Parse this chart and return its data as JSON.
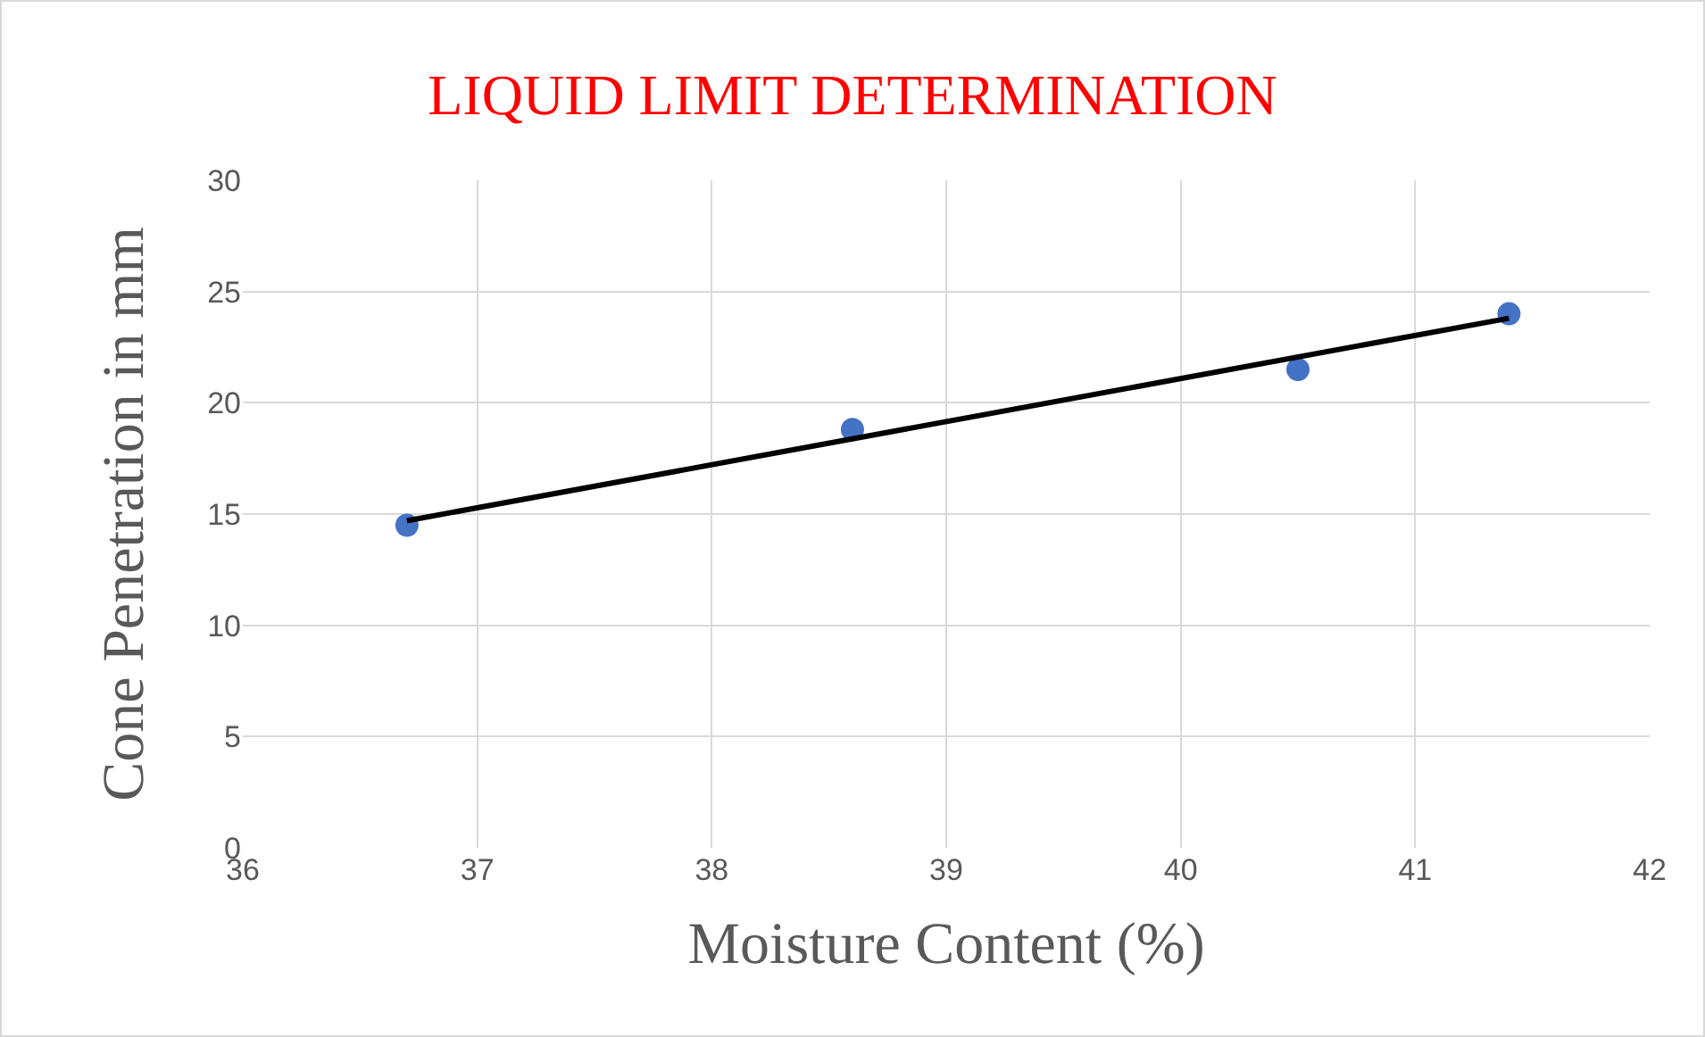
{
  "chart_data": {
    "type": "scatter",
    "title": "LIQUID LIMIT DETERMINATION",
    "xlabel": "Moisture Content (%)",
    "ylabel": "Cone Penetration in mm",
    "series": [
      {
        "type": "scatter",
        "color": "#4472c4",
        "x": [
          36.7,
          38.6,
          40.5,
          41.4
        ],
        "values": [
          14.5,
          18.8,
          21.5,
          24.0
        ],
        "marker": "circle"
      },
      {
        "type": "line",
        "color": "#000000",
        "x": [
          36.7,
          41.4
        ],
        "values": [
          14.7,
          23.8
        ],
        "line_style": "solid"
      }
    ],
    "xlim": [
      36,
      42
    ],
    "xticks": [
      36,
      37,
      38,
      39,
      40,
      41,
      42
    ],
    "ylim": [
      0,
      30
    ],
    "yticks": [
      0,
      5,
      10,
      15,
      20,
      25,
      30
    ],
    "grid": true
  }
}
